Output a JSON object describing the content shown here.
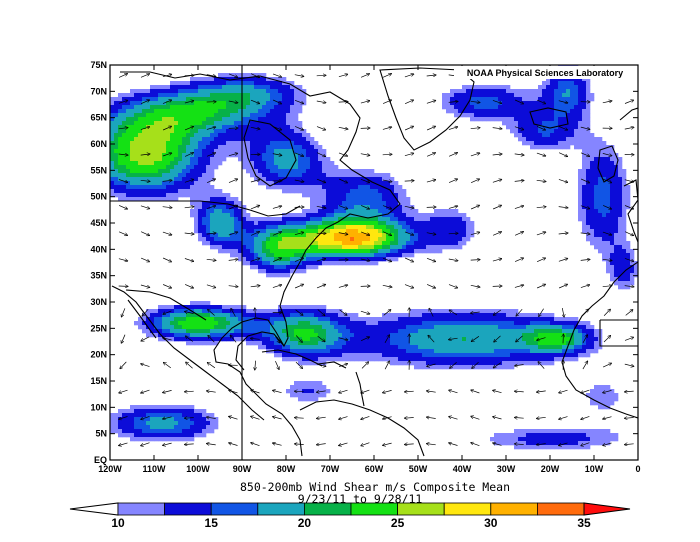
{
  "map": {
    "credit": "NOAA Physical Sciences Laboratory",
    "title_line1": "850-200mb Wind Shear m/s Composite Mean",
    "title_line2": "9/23/11  to 9/28/11",
    "lon_ticks": [
      "120W",
      "110W",
      "100W",
      "90W",
      "80W",
      "70W",
      "60W",
      "50W",
      "40W",
      "30W",
      "20W",
      "10W",
      "0"
    ],
    "lat_ticks": [
      "EQ",
      "5N",
      "10N",
      "15N",
      "20N",
      "25N",
      "30N",
      "35N",
      "40N",
      "45N",
      "50N",
      "55N",
      "60N",
      "65N",
      "70N",
      "75N"
    ]
  },
  "colorbar": {
    "labels": [
      "10",
      "15",
      "20",
      "25",
      "30",
      "35"
    ],
    "colors": [
      "#ffffff",
      "#8585ff",
      "#0c0cd8",
      "#1155e5",
      "#1ba5bd",
      "#07b148",
      "#14e114",
      "#a6e01a",
      "#ffe70f",
      "#ffb100",
      "#ff6b0c",
      "#ff0d0d"
    ]
  },
  "shear_levels": [
    {
      "level": 10,
      "color": "#8585ff"
    },
    {
      "level": 12,
      "color": "#0c0cd8"
    },
    {
      "level": 15,
      "color": "#1155e5"
    },
    {
      "level": 17,
      "color": "#1ba5bd"
    },
    {
      "level": 20,
      "color": "#07b148"
    },
    {
      "level": 22,
      "color": "#14e114"
    },
    {
      "level": 25,
      "color": "#a6e01a"
    },
    {
      "level": 27,
      "color": "#ffe70f"
    },
    {
      "level": 30,
      "color": "#ffb100"
    },
    {
      "level": 32,
      "color": "#ff6b0c"
    },
    {
      "level": 35,
      "color": "#ff0d0d"
    }
  ]
}
